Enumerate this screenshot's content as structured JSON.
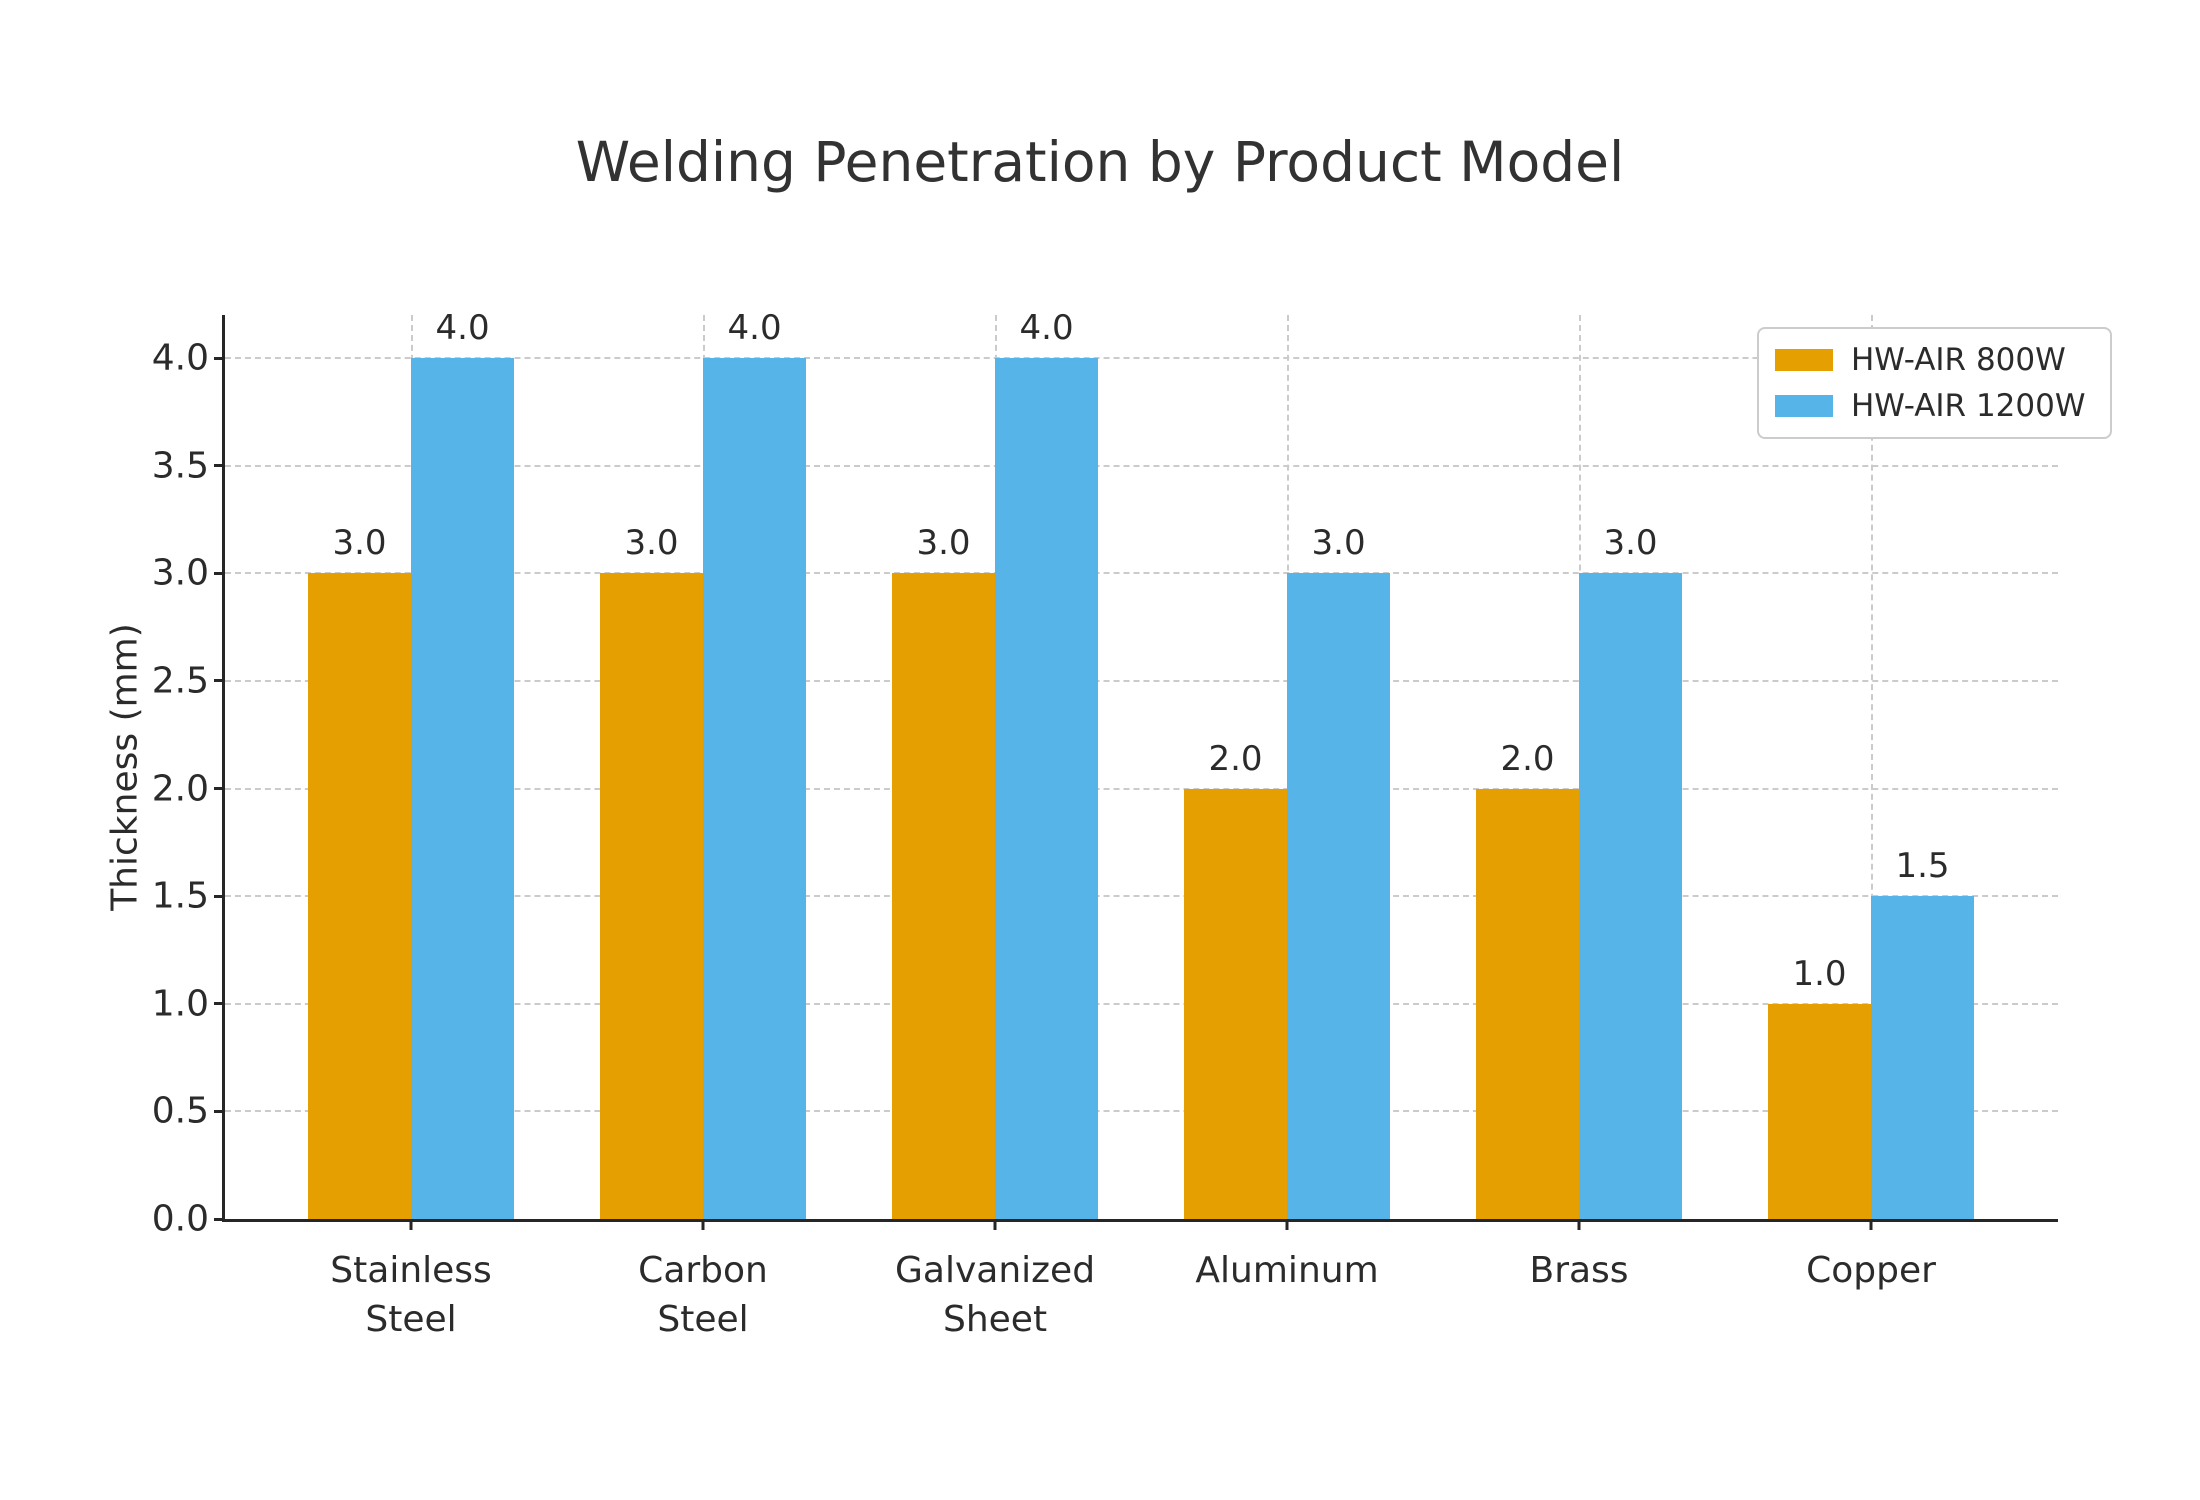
{
  "chart_data": {
    "type": "bar",
    "title": "Welding Penetration by Product Model",
    "xlabel": "",
    "ylabel": "Thickness (mm)",
    "categories": [
      "Stainless Steel",
      "Carbon Steel",
      "Galvanized Sheet",
      "Aluminum",
      "Brass",
      "Copper"
    ],
    "category_tick_lines": [
      [
        "Stainless",
        "Steel"
      ],
      [
        "Carbon",
        "Steel"
      ],
      [
        "Galvanized",
        "Sheet"
      ],
      [
        "Aluminum"
      ],
      [
        "Brass"
      ],
      [
        "Copper"
      ]
    ],
    "series": [
      {
        "name": "HW-AIR 800W",
        "color": "#E69F00",
        "values": [
          3.0,
          3.0,
          3.0,
          2.0,
          2.0,
          1.0
        ]
      },
      {
        "name": "HW-AIR 1200W",
        "color": "#56B4E9",
        "values": [
          4.0,
          4.0,
          4.0,
          3.0,
          3.0,
          1.5
        ]
      }
    ],
    "value_label_format": "one-decimal",
    "yticks": [
      0.0,
      0.5,
      1.0,
      1.5,
      2.0,
      2.5,
      3.0,
      3.5,
      4.0
    ],
    "ytick_labels": [
      "0.0",
      "0.5",
      "1.0",
      "1.5",
      "2.0",
      "2.5",
      "3.0",
      "3.5",
      "4.0"
    ],
    "ylim": [
      0,
      4.2
    ],
    "grid": "dashed gray, horizontal at y-ticks and vertical at category centers",
    "legend_position": "upper right",
    "colors": {
      "background": "#ffffff",
      "text": "#2b2b2b",
      "axis": "#262626",
      "gridline": "#cbcbcb",
      "legend_border": "#cccccc"
    }
  }
}
